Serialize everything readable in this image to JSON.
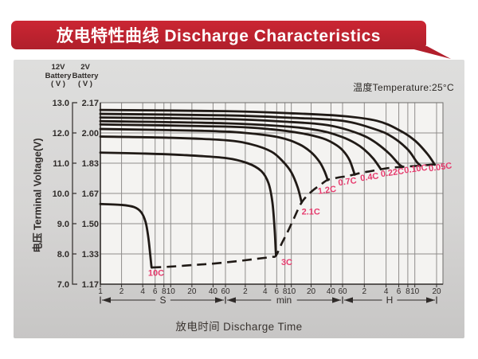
{
  "banner": {
    "title": "放电特性曲线 Discharge Characteristics",
    "bg_color": "#c22430",
    "text_color": "#ffffff"
  },
  "panel": {
    "temperature_label": "温度Temperature:25°C"
  },
  "y_axis": {
    "axis_title": "电压 Terminal Voltage(V)",
    "left_header": [
      "12V",
      "Battery",
      "( V )"
    ],
    "right_header": [
      "2V",
      "Battery",
      "( V )"
    ],
    "rows": [
      {
        "left": "13.0",
        "right": "2.17",
        "v": 13
      },
      {
        "left": "12.0",
        "right": "2.00",
        "v": 12
      },
      {
        "left": "11.0",
        "right": "1.83",
        "v": 11
      },
      {
        "left": "10.0",
        "right": "1.67",
        "v": 10
      },
      {
        "left": "9.0",
        "right": "1.50",
        "v": 9
      },
      {
        "left": "8.0",
        "right": "1.33",
        "v": 8
      },
      {
        "left": "7.0",
        "right": "1.17",
        "v": 7
      }
    ]
  },
  "x_axis": {
    "title": "放电时间 Discharge Time",
    "segments": [
      {
        "unit": "S",
        "mult": 1,
        "ticks": [
          1,
          2,
          4,
          6,
          8,
          10,
          20,
          40,
          60
        ]
      },
      {
        "unit": "min",
        "mult": 60,
        "ticks": [
          2,
          4,
          6,
          8,
          10,
          20,
          40,
          60
        ]
      },
      {
        "unit": "H",
        "mult": 3600,
        "ticks": [
          2,
          4,
          6,
          8,
          10,
          20
        ]
      }
    ]
  },
  "chart_data": {
    "type": "line",
    "title": "Discharge Characteristics",
    "xlabel": "Discharge Time (log scale, 1 s to 20 H)",
    "ylabel": "Terminal Voltage (V), 12V-battery scale (2V scale = value/6)",
    "ylim": [
      7.0,
      13.0
    ],
    "grid": true,
    "curve_color": "#201a16",
    "label_color": "#e63c6e",
    "series": [
      {
        "name": "10C",
        "points": [
          [
            1,
            9.65
          ],
          [
            2,
            9.62
          ],
          [
            3,
            9.55
          ],
          [
            3.8,
            9.38
          ],
          [
            4.4,
            9.05
          ],
          [
            4.8,
            8.55
          ],
          [
            5.1,
            8.0
          ],
          [
            5.3,
            7.62
          ],
          [
            5.35,
            7.55
          ]
        ]
      },
      {
        "name": "3C",
        "points": [
          [
            1,
            11.35
          ],
          [
            4,
            11.32
          ],
          [
            15,
            11.27
          ],
          [
            60,
            11.17
          ],
          [
            130,
            11.0
          ],
          [
            210,
            10.74
          ],
          [
            270,
            10.34
          ],
          [
            310,
            9.7
          ],
          [
            335,
            8.8
          ],
          [
            348,
            8.1
          ],
          [
            352,
            7.95
          ]
        ]
      },
      {
        "name": "2.1C",
        "points": [
          [
            1,
            11.88
          ],
          [
            10,
            11.84
          ],
          [
            60,
            11.76
          ],
          [
            150,
            11.62
          ],
          [
            300,
            11.38
          ],
          [
            450,
            11.05
          ],
          [
            600,
            10.7
          ],
          [
            750,
            10.2
          ],
          [
            860,
            9.7
          ]
        ]
      },
      {
        "name": "1.2C",
        "points": [
          [
            1,
            12.13
          ],
          [
            30,
            12.07
          ],
          [
            120,
            12.0
          ],
          [
            400,
            11.85
          ],
          [
            800,
            11.62
          ],
          [
            1200,
            11.36
          ],
          [
            1600,
            11.05
          ],
          [
            1900,
            10.75
          ],
          [
            2150,
            10.44
          ]
        ]
      },
      {
        "name": "0.7C",
        "points": [
          [
            1,
            12.28
          ],
          [
            60,
            12.21
          ],
          [
            300,
            12.12
          ],
          [
            900,
            11.98
          ],
          [
            1800,
            11.82
          ],
          [
            2700,
            11.64
          ],
          [
            3600,
            11.43
          ],
          [
            4500,
            11.1
          ],
          [
            5300,
            10.62
          ]
        ]
      },
      {
        "name": "0.4C",
        "points": [
          [
            1,
            12.39
          ],
          [
            60,
            12.32
          ],
          [
            600,
            12.2
          ],
          [
            1800,
            12.06
          ],
          [
            3600,
            11.86
          ],
          [
            5400,
            11.66
          ],
          [
            7200,
            11.45
          ],
          [
            9600,
            11.15
          ],
          [
            12200,
            10.8
          ]
        ]
      },
      {
        "name": "0.22C",
        "points": [
          [
            1,
            12.51
          ],
          [
            60,
            12.46
          ],
          [
            600,
            12.36
          ],
          [
            1800,
            12.28
          ],
          [
            3600,
            12.15
          ],
          [
            7200,
            11.9
          ],
          [
            10800,
            11.65
          ],
          [
            16200,
            11.3
          ],
          [
            21600,
            10.97
          ],
          [
            24500,
            10.88
          ]
        ]
      },
      {
        "name": "0.10C",
        "points": [
          [
            1,
            12.63
          ],
          [
            60,
            12.58
          ],
          [
            600,
            12.5
          ],
          [
            3600,
            12.4
          ],
          [
            10800,
            12.1
          ],
          [
            18000,
            11.85
          ],
          [
            28800,
            11.45
          ],
          [
            38000,
            11.05
          ],
          [
            43200,
            10.92
          ]
        ]
      },
      {
        "name": "0.05C",
        "points": [
          [
            1,
            12.76
          ],
          [
            60,
            12.72
          ],
          [
            600,
            12.65
          ],
          [
            3600,
            12.56
          ],
          [
            10800,
            12.4
          ],
          [
            21600,
            12.1
          ],
          [
            36000,
            11.75
          ],
          [
            54000,
            11.3
          ],
          [
            68000,
            10.95
          ]
        ]
      }
    ],
    "cutoff_line": {
      "name": "discharge-cutoff",
      "style": "dashed",
      "points": [
        [
          5.35,
          7.55
        ],
        [
          10,
          7.58
        ],
        [
          20,
          7.63
        ],
        [
          40,
          7.68
        ],
        [
          90,
          7.76
        ],
        [
          180,
          7.84
        ],
        [
          300,
          7.9
        ],
        [
          352,
          7.95
        ],
        [
          430,
          8.35
        ],
        [
          520,
          8.7
        ],
        [
          650,
          9.15
        ],
        [
          860,
          9.7
        ],
        [
          1200,
          10.05
        ],
        [
          1700,
          10.3
        ],
        [
          2150,
          10.45
        ],
        [
          3000,
          10.52
        ],
        [
          4300,
          10.58
        ],
        [
          6500,
          10.68
        ],
        [
          9000,
          10.74
        ],
        [
          12200,
          10.8
        ],
        [
          17000,
          10.85
        ],
        [
          24500,
          10.88
        ],
        [
          43200,
          10.92
        ],
        [
          68000,
          10.96
        ]
      ]
    },
    "labels": [
      {
        "text": "10C",
        "t": 6.2,
        "v": 7.28,
        "rot": 0
      },
      {
        "text": "3C",
        "t": 512,
        "v": 7.63,
        "rot": 0
      },
      {
        "text": "2.1C",
        "t": 1190,
        "v": 9.3,
        "rot": 0
      },
      {
        "text": "1.2C",
        "t": 2120,
        "v": 10.02,
        "rot": -8
      },
      {
        "text": "0.7C",
        "t": 4250,
        "v": 10.3,
        "rot": -8
      },
      {
        "text": "0.4C",
        "t": 8600,
        "v": 10.45,
        "rot": -8
      },
      {
        "text": "0.22C",
        "t": 17800,
        "v": 10.6,
        "rot": -8
      },
      {
        "text": "0.10C",
        "t": 37500,
        "v": 10.72,
        "rot": -8
      },
      {
        "text": "0.05C",
        "t": 82000,
        "v": 10.78,
        "rot": -8
      }
    ]
  }
}
